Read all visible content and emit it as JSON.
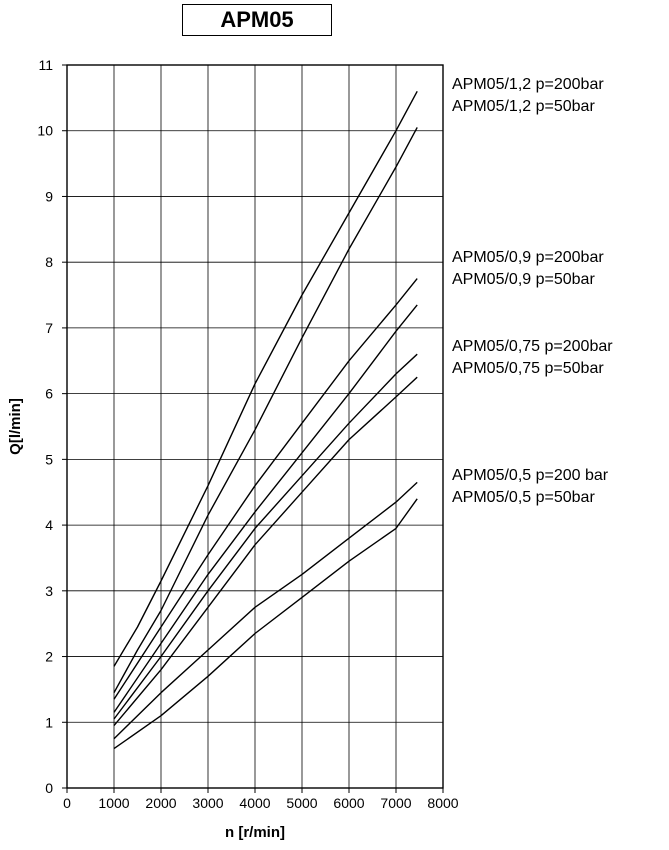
{
  "chart_data": {
    "type": "line",
    "title": "APM05",
    "xlabel": "n [r/min]",
    "ylabel": "Q[l/min]",
    "xlim": [
      0,
      8000
    ],
    "ylim": [
      0,
      11
    ],
    "xticks": [
      "0",
      "1000",
      "2000",
      "3000",
      "4000",
      "5000",
      "6000",
      "7000",
      "8000"
    ],
    "yticks": [
      "0",
      "1",
      "2",
      "3",
      "4",
      "5",
      "6",
      "7",
      "8",
      "9",
      "10",
      "11"
    ],
    "grid": true,
    "series": [
      {
        "name": "APM05/1,2 p=200bar",
        "x": [
          1000,
          1500,
          2000,
          3000,
          4000,
          5000,
          6000,
          7000,
          7450
        ],
        "y": [
          1.85,
          2.45,
          3.15,
          4.6,
          6.15,
          7.5,
          8.75,
          10.0,
          10.6
        ]
      },
      {
        "name": "APM05/1,2 p=50bar",
        "x": [
          1000,
          1500,
          2000,
          3000,
          4000,
          5000,
          6000,
          7000,
          7450
        ],
        "y": [
          1.45,
          2.1,
          2.7,
          4.15,
          5.45,
          6.85,
          8.2,
          9.45,
          10.05
        ]
      },
      {
        "name": "APM05/0,9 p=200bar",
        "x": [
          1000,
          2000,
          3000,
          4000,
          5000,
          6000,
          7000,
          7450
        ],
        "y": [
          1.35,
          2.45,
          3.55,
          4.6,
          5.55,
          6.5,
          7.35,
          7.75
        ]
      },
      {
        "name": "APM05/0,9 p=50bar",
        "x": [
          1000,
          2000,
          3000,
          4000,
          5000,
          6000,
          7000,
          7450
        ],
        "y": [
          1.15,
          2.2,
          3.25,
          4.2,
          5.1,
          6.0,
          6.95,
          7.35
        ]
      },
      {
        "name": "APM05/0,75 p=200bar",
        "x": [
          1000,
          2000,
          3000,
          4000,
          5000,
          6000,
          7000,
          7450
        ],
        "y": [
          1.05,
          2.0,
          3.0,
          3.95,
          4.75,
          5.55,
          6.3,
          6.6
        ]
      },
      {
        "name": "APM05/0,75 p=50bar",
        "x": [
          1000,
          2000,
          3000,
          4000,
          5000,
          6000,
          7000,
          7450
        ],
        "y": [
          0.95,
          1.8,
          2.75,
          3.7,
          4.5,
          5.3,
          5.95,
          6.25
        ]
      },
      {
        "name": "APM05/0,5 p=200 bar",
        "x": [
          1000,
          2000,
          3000,
          4000,
          5000,
          6000,
          7000,
          7450
        ],
        "y": [
          0.75,
          1.45,
          2.1,
          2.75,
          3.25,
          3.8,
          4.35,
          4.65
        ]
      },
      {
        "name": "APM05/0,5 p=50bar",
        "x": [
          1000,
          2000,
          3000,
          4000,
          5000,
          6000,
          7000,
          7450
        ],
        "y": [
          0.6,
          1.1,
          1.7,
          2.35,
          2.9,
          3.45,
          3.95,
          4.4
        ]
      }
    ]
  }
}
